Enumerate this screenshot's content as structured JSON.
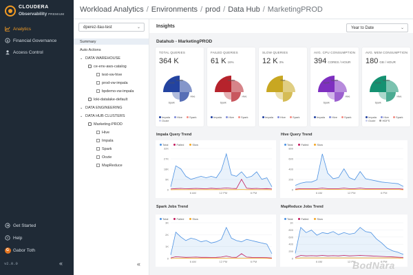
{
  "app": {
    "brand": "CLOUDERA",
    "product": "Observability",
    "edition": "PREMIUM",
    "version": "v2.0.0"
  },
  "nav": {
    "items": [
      {
        "label": "Analytics",
        "icon": "chart-icon",
        "active": true
      },
      {
        "label": "Financial Governance",
        "icon": "dollar-icon",
        "active": false
      },
      {
        "label": "Access Control",
        "icon": "user-icon",
        "active": false
      }
    ],
    "footer": [
      {
        "label": "Get Started",
        "icon": "arrow-right-circle-icon"
      },
      {
        "label": "Help",
        "icon": "question-circle-icon"
      }
    ],
    "user": {
      "initial": "G",
      "name": "Gabor Toth"
    }
  },
  "breadcrumb": [
    "Workload Analytics",
    "Environments",
    "prod",
    "Data Hub",
    "MarketingPROD"
  ],
  "tree": {
    "environment": "dperez-itau-test",
    "rows": [
      {
        "label": "Summary",
        "indent": 0,
        "highlight": true
      },
      {
        "label": "Auto Actions",
        "indent": 0
      },
      {
        "label": "DATA WAREHOUSE",
        "indent": 0,
        "section": true
      },
      {
        "label": "ce-env-aws-catalog",
        "indent": 1
      },
      {
        "label": "test-vw-hive",
        "indent": 2
      },
      {
        "label": "prod-vw-impala",
        "indent": 2
      },
      {
        "label": "bpdemo-vw-impala",
        "indent": 2
      },
      {
        "label": "loki-datalake-default",
        "indent": 1
      },
      {
        "label": "DATA ENGINEERING",
        "indent": 0,
        "section": true
      },
      {
        "label": "DATA HUB CLUSTERS",
        "indent": 0,
        "section": true
      },
      {
        "label": "Marketing-PROD",
        "indent": 1
      },
      {
        "label": "Hive",
        "indent": 2
      },
      {
        "label": "Impala",
        "indent": 2
      },
      {
        "label": "Spark",
        "indent": 2
      },
      {
        "label": "Oozie",
        "indent": 2
      },
      {
        "label": "MapReduce",
        "indent": 2
      }
    ]
  },
  "insights": {
    "title": "Insights",
    "period": "Year to Date",
    "subtitle": "Datahub - MarketingPROD"
  },
  "cards": [
    {
      "title": "TOTAL QUERIES",
      "value": "364 K",
      "unit": "",
      "color": "#1f3f9e",
      "labels": [
        "Impala",
        "Hive",
        "Spark",
        "Oozie"
      ],
      "legend": [
        "Impala",
        "Hive",
        "Spark",
        "Oozie"
      ]
    },
    {
      "title": "FAILED QUERIES",
      "value": "61 K",
      "unit": "16%",
      "color": "#b51f28",
      "labels": [
        "Impala",
        "Hive",
        "Spark"
      ],
      "legend": [
        "Impala",
        "Hive",
        "Spark"
      ]
    },
    {
      "title": "SLOW QUERIES",
      "value": "12 K",
      "unit": "3%",
      "color": "#c7a51e",
      "labels": [
        "Hive"
      ],
      "legend": [
        "Impala",
        "Hive",
        "Spark"
      ]
    },
    {
      "title": "AVG. CPU CONSUMPTION",
      "value": "394",
      "unit": "CORES / HOUR",
      "color": "#7b2bbf",
      "labels": [
        "Impala",
        "Hive",
        "Spark",
        "Spark"
      ],
      "legend": [
        "Impala",
        "Hive",
        "Spark"
      ]
    },
    {
      "title": "AVG. MEM CONSUMPTION",
      "value": "180",
      "unit": "GB / HOUR",
      "color": "#0f8f6e",
      "labels": [
        "Impala",
        "Hive",
        "Spark",
        "Oozie"
      ],
      "legend": [
        "Impala",
        "Hive",
        "Spark",
        "Oozie",
        "HDFS"
      ]
    }
  ],
  "trend_legend": [
    "Total",
    "Failed",
    "Slow"
  ],
  "colors": {
    "total": "#4a90e2",
    "failed": "#c2185b",
    "slow": "#f5a623"
  },
  "trends": [
    {
      "title": "Impala Query Trend",
      "yticks": [
        "32K",
        "27K",
        "18K",
        "9K",
        "0"
      ],
      "xticks": [
        "6 AM",
        "12 PM",
        "6 PM"
      ]
    },
    {
      "title": "Hive Query Trend",
      "yticks": [
        "800",
        "600",
        "400",
        "200",
        "0"
      ],
      "xticks": [
        "6 AM",
        "12 PM",
        "6 PM"
      ]
    },
    {
      "title": "Spark Jobs Trend",
      "yticks": [
        "3K",
        "2K",
        "1K",
        "0"
      ],
      "xticks": [
        "6 AM",
        "12 PM",
        "6 PM"
      ]
    },
    {
      "title": "MapReduce Jobs Trend",
      "yticks": [
        "1K",
        "800",
        "600",
        "400",
        "200",
        "0"
      ],
      "xticks": [
        "6 AM",
        "12 PM",
        "6 PM"
      ]
    }
  ],
  "chart_data": [
    {
      "type": "line",
      "title": "Impala Query Trend",
      "x": [
        0,
        1,
        2,
        3,
        4,
        5,
        6,
        7,
        8,
        9,
        10,
        11,
        12,
        13,
        14,
        15,
        16,
        17,
        18,
        19,
        20
      ],
      "series": [
        {
          "name": "Total",
          "values": [
            2000,
            16000,
            14000,
            9000,
            7000,
            8000,
            9000,
            8000,
            9000,
            8000,
            13000,
            24000,
            10000,
            9000,
            12000,
            8000,
            9000,
            12000,
            7000,
            8000,
            2000
          ]
        },
        {
          "name": "Failed",
          "values": [
            500,
            800,
            900,
            700,
            800,
            900,
            800,
            700,
            1000,
            800,
            900,
            1200,
            900,
            800,
            7000,
            1000,
            800,
            900,
            700,
            800,
            500
          ]
        },
        {
          "name": "Slow",
          "values": [
            0,
            100,
            100,
            50,
            100,
            100,
            50,
            100,
            100,
            100,
            100,
            100,
            100,
            100,
            200,
            100,
            100,
            100,
            50,
            100,
            0
          ]
        }
      ]
    },
    {
      "type": "line",
      "title": "Hive Query Trend",
      "x": [
        0,
        1,
        2,
        3,
        4,
        5,
        6,
        7,
        8,
        9,
        10,
        11,
        12,
        13,
        14,
        15,
        16,
        17,
        18,
        19,
        20
      ],
      "series": [
        {
          "name": "Total",
          "values": [
            80,
            120,
            140,
            140,
            180,
            650,
            300,
            200,
            220,
            380,
            220,
            180,
            330,
            200,
            180,
            160,
            140,
            130,
            120,
            110,
            60
          ]
        },
        {
          "name": "Failed",
          "values": [
            10,
            20,
            20,
            20,
            20,
            30,
            20,
            20,
            20,
            30,
            20,
            20,
            30,
            20,
            20,
            20,
            20,
            20,
            20,
            20,
            10
          ]
        },
        {
          "name": "Slow",
          "values": [
            0,
            5,
            5,
            5,
            5,
            5,
            5,
            5,
            5,
            5,
            5,
            5,
            5,
            5,
            5,
            5,
            5,
            5,
            5,
            5,
            0
          ]
        }
      ]
    },
    {
      "type": "line",
      "title": "Spark Jobs Trend",
      "x": [
        0,
        1,
        2,
        3,
        4,
        5,
        6,
        7,
        8,
        9,
        10,
        11,
        12,
        13,
        14,
        15,
        16,
        17,
        18,
        19,
        20
      ],
      "series": [
        {
          "name": "Total",
          "values": [
            300,
            2200,
            1800,
            1500,
            1700,
            1600,
            1400,
            1500,
            1300,
            1400,
            1600,
            2600,
            1700,
            1500,
            1400,
            1600,
            1500,
            1400,
            1300,
            1200,
            400
          ]
        },
        {
          "name": "Failed",
          "values": [
            50,
            150,
            120,
            100,
            110,
            120,
            100,
            100,
            90,
            100,
            120,
            200,
            110,
            100,
            400,
            120,
            100,
            90,
            80,
            70,
            40
          ]
        },
        {
          "name": "Slow",
          "values": [
            0,
            20,
            20,
            20,
            20,
            20,
            20,
            20,
            20,
            20,
            20,
            20,
            20,
            20,
            20,
            20,
            20,
            20,
            20,
            20,
            0
          ]
        }
      ]
    },
    {
      "type": "line",
      "title": "MapReduce Jobs Trend",
      "x": [
        0,
        1,
        2,
        3,
        4,
        5,
        6,
        7,
        8,
        9,
        10,
        11,
        12,
        13,
        14,
        15,
        16,
        17,
        18,
        19,
        20
      ],
      "series": [
        {
          "name": "Total",
          "values": [
            100,
            600,
            500,
            550,
            450,
            500,
            480,
            520,
            460,
            500,
            470,
            490,
            600,
            520,
            500,
            380,
            300,
            200,
            150,
            120,
            80
          ]
        },
        {
          "name": "Failed",
          "values": [
            20,
            60,
            50,
            55,
            50,
            60,
            50,
            55,
            50,
            60,
            50,
            55,
            60,
            55,
            50,
            45,
            40,
            35,
            30,
            25,
            20
          ]
        },
        {
          "name": "Slow",
          "values": [
            0,
            10,
            10,
            10,
            10,
            10,
            10,
            10,
            10,
            10,
            10,
            10,
            10,
            10,
            10,
            10,
            10,
            10,
            10,
            10,
            0
          ]
        }
      ]
    }
  ]
}
